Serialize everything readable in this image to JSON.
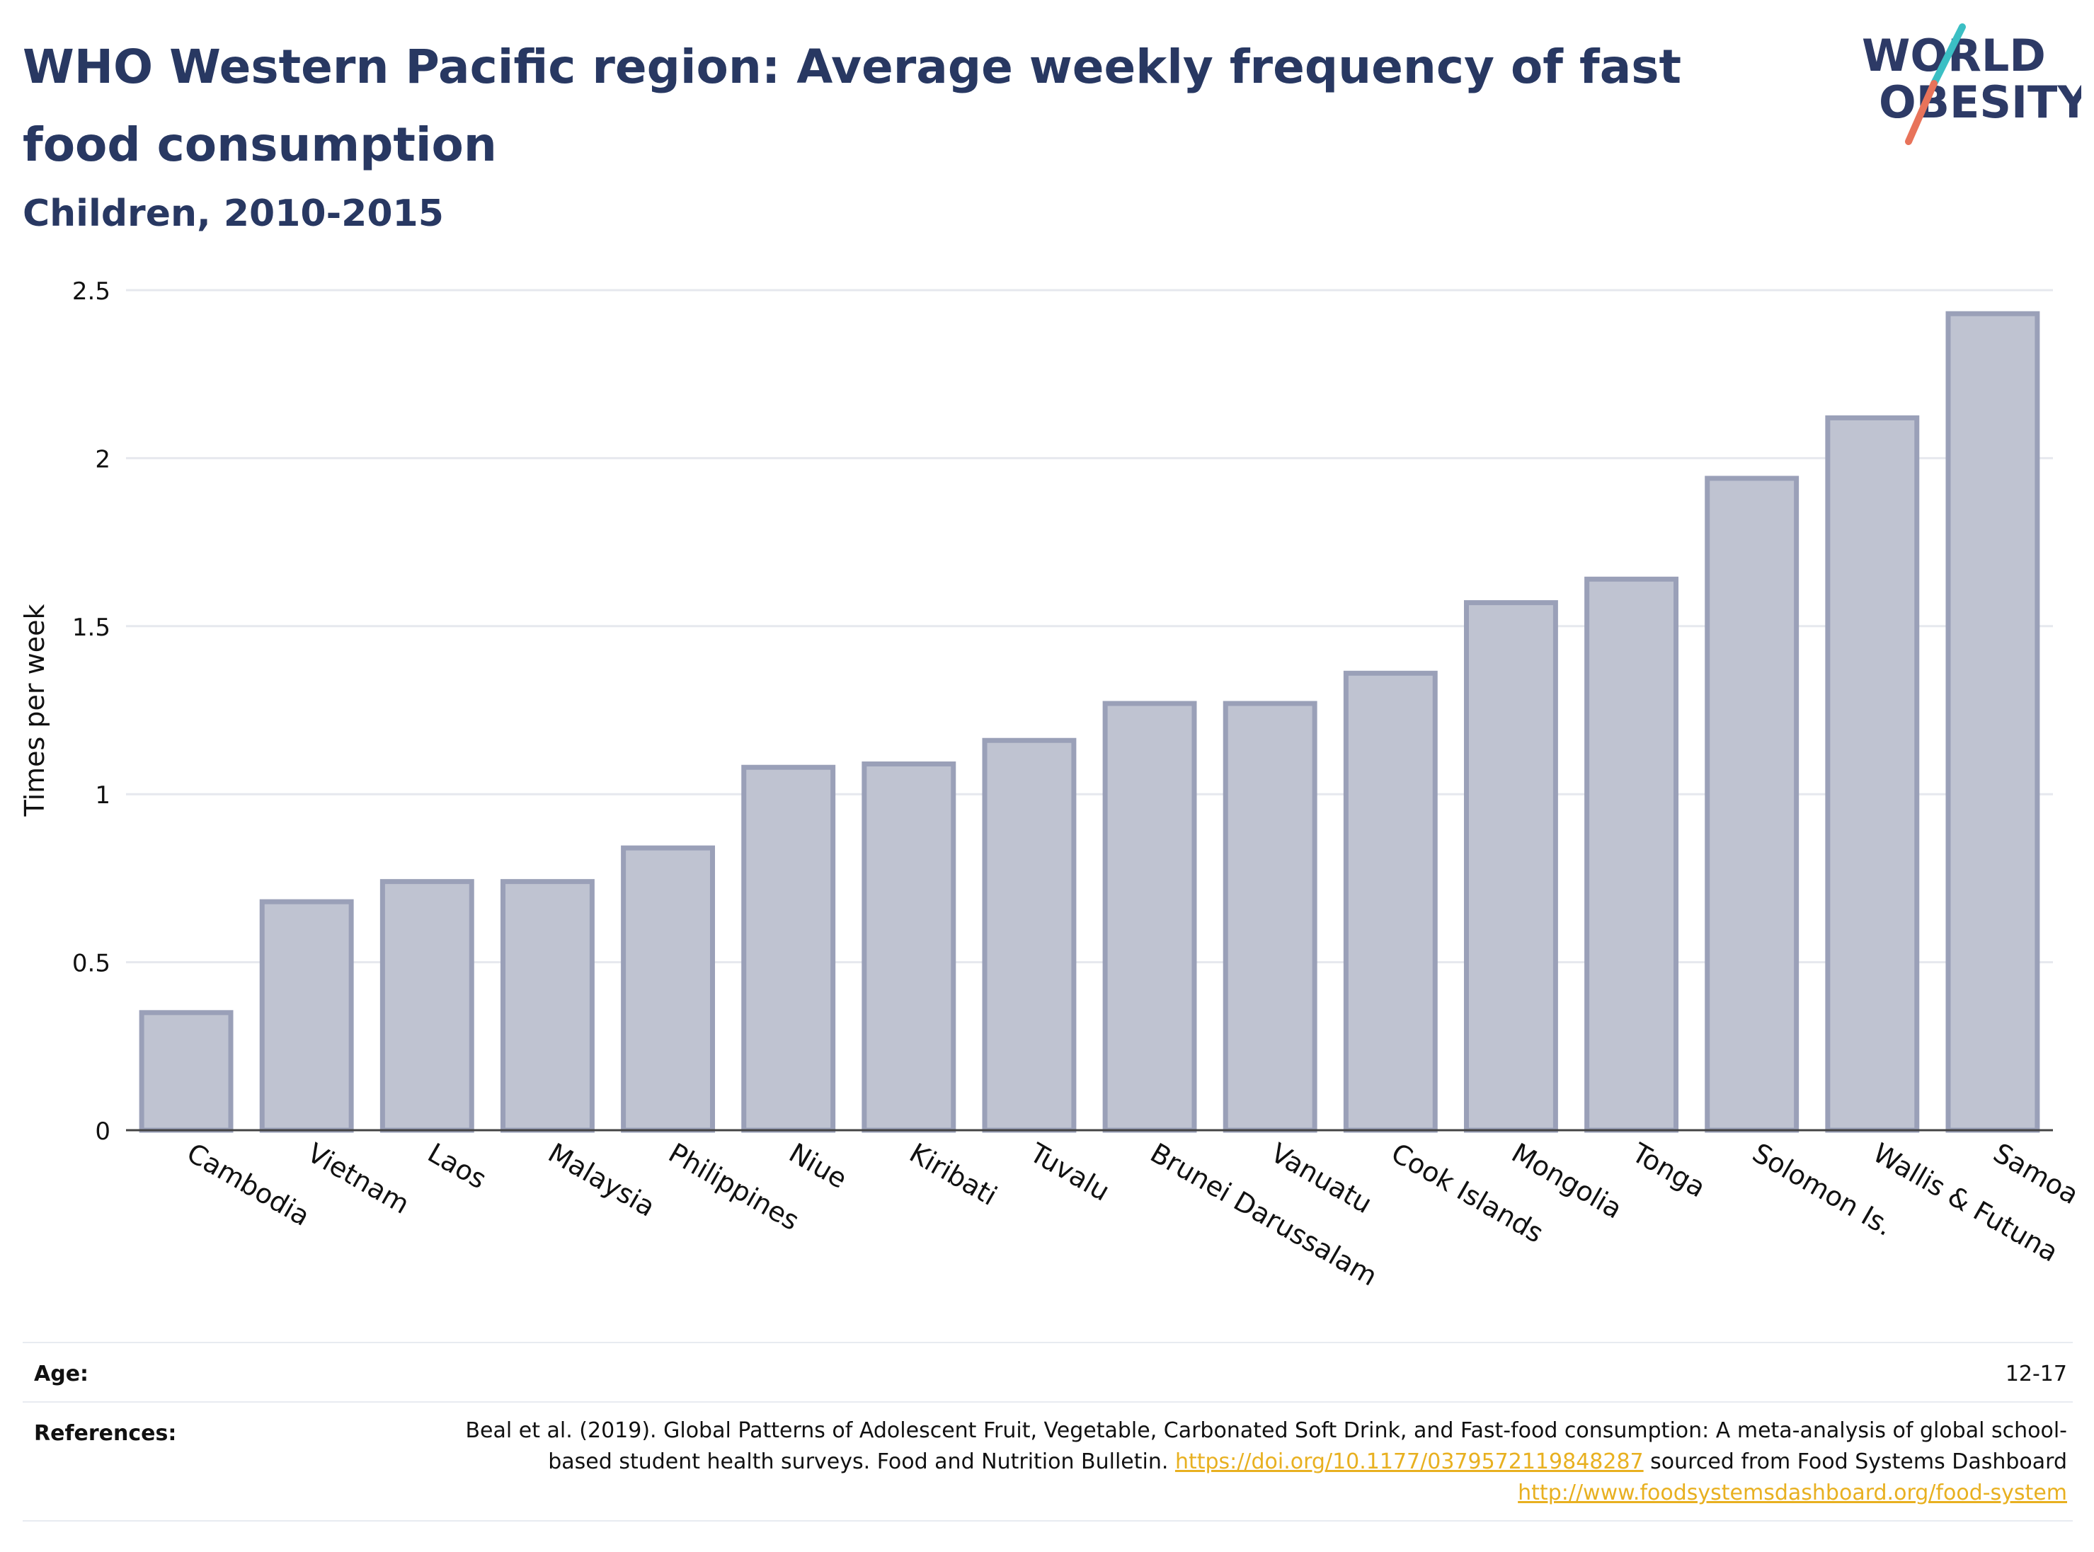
{
  "header": {
    "title": "WHO Western Pacific region: Average weekly frequency of fast food consumption",
    "subtitle": "Children, 2010-2015"
  },
  "logo": {
    "line1": "WORLD",
    "line2": "OBESITY"
  },
  "colors": {
    "bar_fill": "#bfc3d1",
    "bar_stroke": "#9aa0b8",
    "title": "#283862",
    "link": "#e8b020"
  },
  "chart_data": {
    "type": "bar",
    "categories": [
      "Cambodia",
      "Vietnam",
      "Laos",
      "Malaysia",
      "Philippines",
      "Niue",
      "Kiribati",
      "Tuvalu",
      "Brunei Darussalam",
      "Vanuatu",
      "Cook Islands",
      "Mongolia",
      "Tonga",
      "Solomon Is.",
      "Wallis & Futuna",
      "Samoa"
    ],
    "values": [
      0.35,
      0.68,
      0.74,
      0.74,
      0.84,
      1.08,
      1.09,
      1.16,
      1.27,
      1.27,
      1.36,
      1.57,
      1.64,
      1.94,
      2.12,
      2.43
    ],
    "ylabel": "Times per week",
    "ylim": [
      0,
      2.5
    ],
    "yticks": [
      "0",
      "0.5",
      "1",
      "1.5",
      "2",
      "2.5"
    ],
    "grid": true
  },
  "footer": {
    "age_label": "Age:",
    "age_value": "12-17",
    "refs_label": "References:",
    "refs_text_1": "Beal et al. (2019). Global Patterns of Adolescent Fruit, Vegetable, Carbonated Soft Drink, and Fast-food consumption: A meta-analysis of global school-based student health surveys. Food and Nutrition Bulletin.",
    "refs_link_1": "https://doi.org/10.1177/0379572119848287",
    "refs_text_2": "sourced from Food Systems Dashboard",
    "refs_link_2": "http://www.foodsystemsdashboard.org/food-system"
  }
}
